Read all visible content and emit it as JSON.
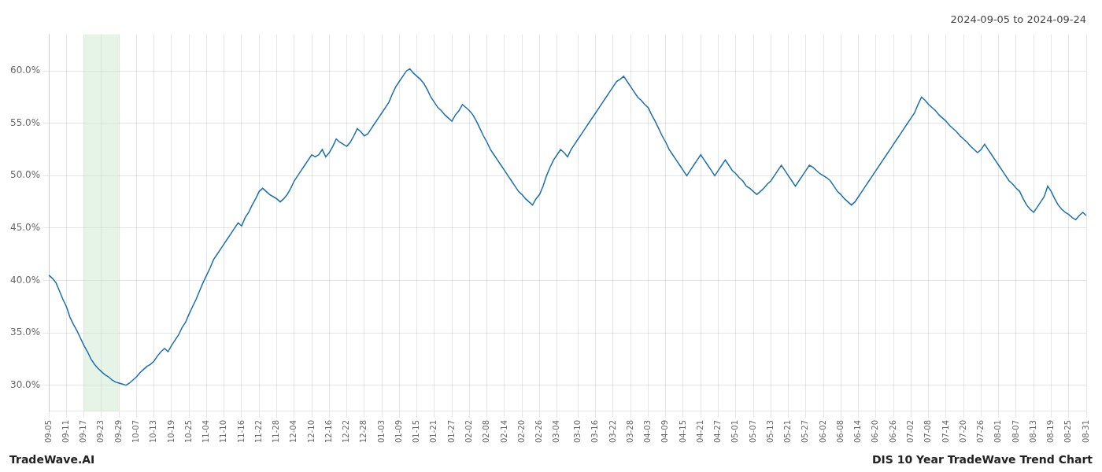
{
  "chart_data": {
    "type": "line",
    "title": "2024-09-05 to 2024-09-24",
    "annotations": [
      "TradeWave.AI",
      "DIS 10 Year TradeWave Trend Chart"
    ],
    "color": "#1a6faf",
    "grid": true,
    "ylim": [
      27.5,
      63.5
    ],
    "yticks": [
      {
        "value": 30.0,
        "label": "30.0%"
      },
      {
        "value": 35.0,
        "label": "35.0%"
      },
      {
        "value": 40.0,
        "label": "40.0%"
      },
      {
        "value": 45.0,
        "label": "45.0%"
      },
      {
        "value": 50.0,
        "label": "50.0%"
      },
      {
        "value": 55.0,
        "label": "55.0%"
      },
      {
        "value": 60.0,
        "label": "60.0%"
      }
    ],
    "shade": {
      "from": "09-17",
      "to": "09-29",
      "color": "#c8e6c9"
    },
    "categories": [
      "09-05",
      null,
      null,
      null,
      null,
      "09-11",
      null,
      null,
      null,
      null,
      "09-17",
      null,
      null,
      null,
      null,
      "09-23",
      null,
      null,
      null,
      null,
      "09-29",
      null,
      null,
      null,
      null,
      "10-07",
      null,
      null,
      null,
      null,
      "10-13",
      null,
      null,
      null,
      null,
      "10-19",
      null,
      null,
      null,
      null,
      "10-25",
      null,
      null,
      null,
      null,
      "11-04",
      null,
      null,
      null,
      null,
      "11-10",
      null,
      null,
      null,
      null,
      "11-16",
      null,
      null,
      null,
      null,
      "11-22",
      null,
      null,
      null,
      null,
      "11-28",
      null,
      null,
      null,
      null,
      "12-04",
      null,
      null,
      null,
      null,
      "12-10",
      null,
      null,
      null,
      null,
      "12-16",
      null,
      null,
      null,
      null,
      "12-22",
      null,
      null,
      null,
      null,
      "12-28",
      null,
      null,
      null,
      null,
      "01-03",
      null,
      null,
      null,
      null,
      "01-09",
      null,
      null,
      null,
      null,
      "01-15",
      null,
      null,
      null,
      null,
      "01-21",
      null,
      null,
      null,
      null,
      "01-27",
      null,
      null,
      null,
      null,
      "02-02",
      null,
      null,
      null,
      null,
      "02-08",
      null,
      null,
      null,
      null,
      "02-14",
      null,
      null,
      null,
      null,
      "02-20",
      null,
      null,
      null,
      null,
      "02-26",
      null,
      null,
      null,
      null,
      "03-04",
      null,
      null,
      null,
      null,
      null,
      "03-10",
      null,
      null,
      null,
      null,
      "03-16",
      null,
      null,
      null,
      null,
      "03-22",
      null,
      null,
      null,
      null,
      "03-28",
      null,
      null,
      null,
      null,
      "04-03",
      null,
      null,
      null,
      null,
      "04-09",
      null,
      null,
      null,
      null,
      "04-15",
      null,
      null,
      null,
      null,
      "04-21",
      null,
      null,
      null,
      null,
      "04-27",
      null,
      null,
      null,
      null,
      "05-01",
      null,
      null,
      null,
      null,
      "05-07",
      null,
      null,
      null,
      null,
      "05-13",
      null,
      null,
      null,
      null,
      "05-21",
      null,
      null,
      null,
      null,
      "05-27",
      null,
      null,
      null,
      null,
      "06-02",
      null,
      null,
      null,
      null,
      "06-08",
      null,
      null,
      null,
      null,
      "06-14",
      null,
      null,
      null,
      null,
      "06-20",
      null,
      null,
      null,
      null,
      "06-26",
      null,
      null,
      null,
      null,
      "07-02",
      null,
      null,
      null,
      null,
      "07-08",
      null,
      null,
      null,
      null,
      "07-14",
      null,
      null,
      null,
      null,
      "07-20",
      null,
      null,
      null,
      null,
      "07-26",
      null,
      null,
      null,
      null,
      "08-01",
      null,
      null,
      null,
      null,
      "08-07",
      null,
      null,
      null,
      null,
      "08-13",
      null,
      null,
      null,
      null,
      "08-19",
      null,
      null,
      null,
      null,
      "08-25",
      null,
      null,
      null,
      null,
      "08-31"
    ],
    "values": [
      40.5,
      40.2,
      39.8,
      39.0,
      38.2,
      37.5,
      36.5,
      35.8,
      35.2,
      34.5,
      33.8,
      33.2,
      32.5,
      32.0,
      31.6,
      31.3,
      31.0,
      30.8,
      30.5,
      30.3,
      30.2,
      30.1,
      30.0,
      30.2,
      30.5,
      30.8,
      31.2,
      31.5,
      31.8,
      32.0,
      32.3,
      32.8,
      33.2,
      33.5,
      33.2,
      33.8,
      34.3,
      34.8,
      35.5,
      36.0,
      36.8,
      37.5,
      38.2,
      39.0,
      39.8,
      40.5,
      41.2,
      42.0,
      42.5,
      43.0,
      43.5,
      44.0,
      44.5,
      45.0,
      45.5,
      45.2,
      46.0,
      46.5,
      47.2,
      47.8,
      48.5,
      48.8,
      48.5,
      48.2,
      48.0,
      47.8,
      47.5,
      47.8,
      48.2,
      48.8,
      49.5,
      50.0,
      50.5,
      51.0,
      51.5,
      52.0,
      51.8,
      52.0,
      52.5,
      51.8,
      52.2,
      52.8,
      53.5,
      53.2,
      53.0,
      52.8,
      53.2,
      53.8,
      54.5,
      54.2,
      53.8,
      54.0,
      54.5,
      55.0,
      55.5,
      56.0,
      56.5,
      57.0,
      57.8,
      58.5,
      59.0,
      59.5,
      60.0,
      60.2,
      59.8,
      59.5,
      59.2,
      58.8,
      58.2,
      57.5,
      57.0,
      56.5,
      56.2,
      55.8,
      55.5,
      55.2,
      55.8,
      56.2,
      56.8,
      56.5,
      56.2,
      55.8,
      55.2,
      54.5,
      53.8,
      53.2,
      52.5,
      52.0,
      51.5,
      51.0,
      50.5,
      50.0,
      49.5,
      49.0,
      48.5,
      48.2,
      47.8,
      47.5,
      47.2,
      47.8,
      48.2,
      49.0,
      50.0,
      50.8,
      51.5,
      52.0,
      52.5,
      52.2,
      51.8,
      52.5,
      53.0,
      53.5,
      54.0,
      54.5,
      55.0,
      55.5,
      56.0,
      56.5,
      57.0,
      57.5,
      58.0,
      58.5,
      59.0,
      59.2,
      59.5,
      59.0,
      58.5,
      58.0,
      57.5,
      57.2,
      56.8,
      56.5,
      55.8,
      55.2,
      54.5,
      53.8,
      53.2,
      52.5,
      52.0,
      51.5,
      51.0,
      50.5,
      50.0,
      50.5,
      51.0,
      51.5,
      52.0,
      51.5,
      51.0,
      50.5,
      50.0,
      50.5,
      51.0,
      51.5,
      51.0,
      50.5,
      50.2,
      49.8,
      49.5,
      49.0,
      48.8,
      48.5,
      48.2,
      48.5,
      48.8,
      49.2,
      49.5,
      50.0,
      50.5,
      51.0,
      50.5,
      50.0,
      49.5,
      49.0,
      49.5,
      50.0,
      50.5,
      51.0,
      50.8,
      50.5,
      50.2,
      50.0,
      49.8,
      49.5,
      49.0,
      48.5,
      48.2,
      47.8,
      47.5,
      47.2,
      47.5,
      48.0,
      48.5,
      49.0,
      49.5,
      50.0,
      50.5,
      51.0,
      51.5,
      52.0,
      52.5,
      53.0,
      53.5,
      54.0,
      54.5,
      55.0,
      55.5,
      56.0,
      56.8,
      57.5,
      57.2,
      56.8,
      56.5,
      56.2,
      55.8,
      55.5,
      55.2,
      54.8,
      54.5,
      54.2,
      53.8,
      53.5,
      53.2,
      52.8,
      52.5,
      52.2,
      52.5,
      53.0,
      52.5,
      52.0,
      51.5,
      51.0,
      50.5,
      50.0,
      49.5,
      49.2,
      48.8,
      48.5,
      47.8,
      47.2,
      46.8,
      46.5,
      47.0,
      47.5,
      48.0,
      49.0,
      48.5,
      47.8,
      47.2,
      46.8,
      46.5,
      46.3,
      46.0,
      45.8,
      46.2,
      46.5,
      46.2
    ]
  }
}
